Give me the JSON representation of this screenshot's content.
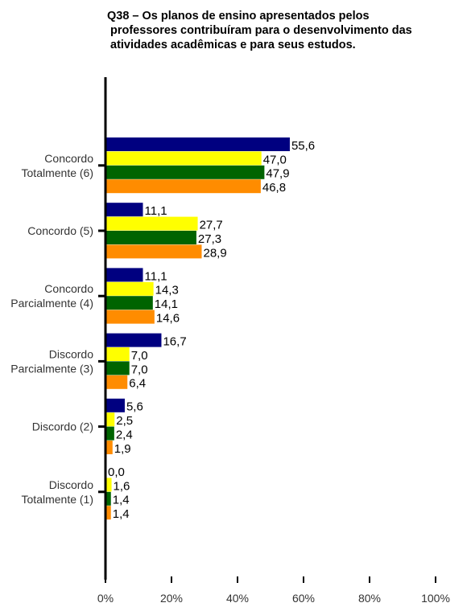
{
  "chart_data": {
    "type": "bar",
    "orientation": "horizontal",
    "title": [
      "Q38 – Os planos de ensino apresentados pelos",
      "professores contribuíram para o desenvolvimento das",
      "atividades acadêmicas e para seus estudos."
    ],
    "categories": [
      [
        "Concordo",
        "Totalmente (6)"
      ],
      [
        "Concordo (5)"
      ],
      [
        "Concordo",
        "Parcialmente (4)"
      ],
      [
        "Discordo",
        "Parcialmente (3)"
      ],
      [
        "Discordo (2)"
      ],
      [
        "Discordo",
        "Totalmente (1)"
      ]
    ],
    "series": [
      {
        "color": "#000080",
        "values": [
          55.6,
          11.1,
          11.1,
          16.7,
          5.6,
          0.0
        ]
      },
      {
        "color": "#FFFF00",
        "values": [
          47.0,
          27.7,
          14.3,
          7.0,
          2.5,
          1.6
        ]
      },
      {
        "color": "#006400",
        "values": [
          47.9,
          27.3,
          14.1,
          7.0,
          2.4,
          1.4
        ]
      },
      {
        "color": "#FF8C00",
        "values": [
          46.8,
          28.9,
          14.6,
          6.4,
          1.9,
          1.4
        ]
      }
    ],
    "value_labels": [
      [
        "55,6",
        "11,1",
        "11,1",
        "16,7",
        "5,6",
        "0,0"
      ],
      [
        "47,0",
        "27,7",
        "14,3",
        "7,0",
        "2,5",
        "1,6"
      ],
      [
        "47,9",
        "27,3",
        "14,1",
        "7,0",
        "2,4",
        "1,4"
      ],
      [
        "46,8",
        "28,9",
        "14,6",
        "6,4",
        "1,9",
        "1,4"
      ]
    ],
    "xlim": [
      0,
      100
    ],
    "xticks": [
      0,
      20,
      40,
      60,
      80,
      100
    ],
    "xtick_labels": [
      "0%",
      "20%",
      "40%",
      "60%",
      "80%",
      "100%"
    ],
    "grid": false,
    "legend": "none"
  }
}
